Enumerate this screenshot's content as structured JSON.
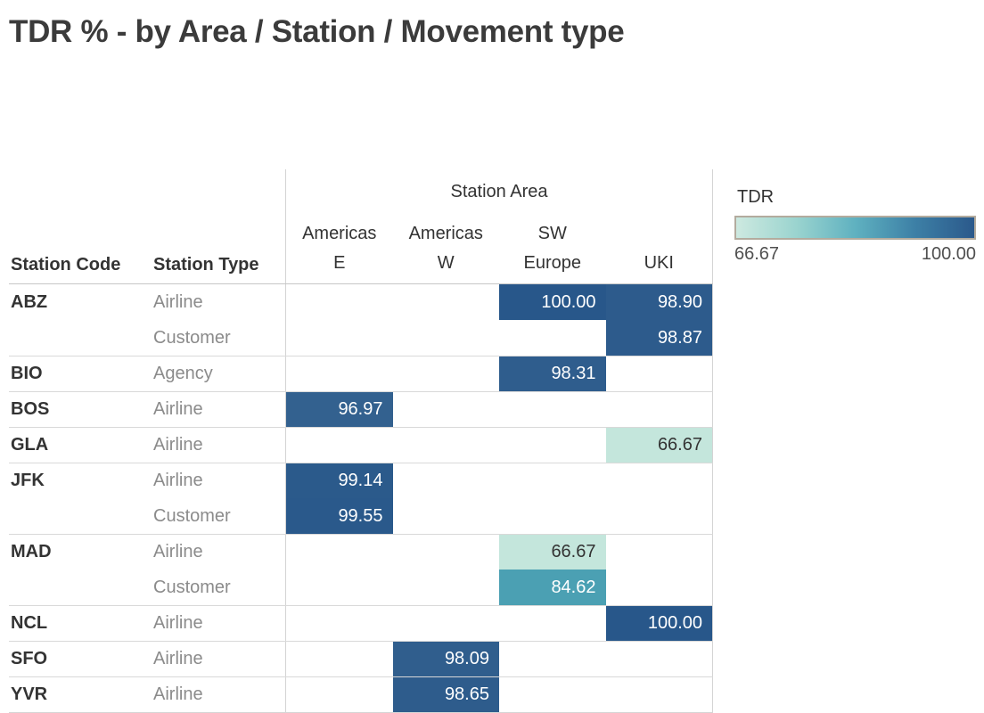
{
  "title": "TDR % - by Area / Station / Movement type",
  "field_labels": {
    "station_code": "Station Code",
    "station_type": "Station Type",
    "area_group": "Station Area"
  },
  "area_columns": [
    {
      "label": "Americas E"
    },
    {
      "label": "Americas W"
    },
    {
      "label": "SW Europe"
    },
    {
      "label": "UKI"
    }
  ],
  "rows": [
    {
      "code": "ABZ",
      "type": "Airline",
      "cells": [
        {},
        {},
        {
          "value": "100.00",
          "bg": "#28578A",
          "fg": "#ffffff"
        },
        {
          "value": "98.90",
          "bg": "#2D5B8C",
          "fg": "#ffffff"
        }
      ]
    },
    {
      "code": "",
      "type": "Customer",
      "cells": [
        {},
        {},
        {},
        {
          "value": "98.87",
          "bg": "#2D5B8C",
          "fg": "#ffffff"
        }
      ]
    },
    {
      "code": "BIO",
      "type": "Agency",
      "cells": [
        {},
        {},
        {
          "value": "98.31",
          "bg": "#2F5D8D",
          "fg": "#ffffff"
        },
        {}
      ]
    },
    {
      "code": "BOS",
      "type": "Airline",
      "cells": [
        {
          "value": "96.97",
          "bg": "#33618F",
          "fg": "#ffffff"
        },
        {},
        {},
        {}
      ]
    },
    {
      "code": "GLA",
      "type": "Airline",
      "cells": [
        {},
        {},
        {},
        {
          "value": "66.67",
          "bg": "#C4E6DC",
          "fg": "#333333"
        }
      ]
    },
    {
      "code": "JFK",
      "type": "Airline",
      "cells": [
        {
          "value": "99.14",
          "bg": "#2B5A8B",
          "fg": "#ffffff"
        },
        {},
        {},
        {}
      ]
    },
    {
      "code": "",
      "type": "Customer",
      "cells": [
        {
          "value": "99.55",
          "bg": "#2A598B",
          "fg": "#ffffff"
        },
        {},
        {},
        {}
      ]
    },
    {
      "code": "MAD",
      "type": "Airline",
      "cells": [
        {},
        {},
        {
          "value": "66.67",
          "bg": "#C4E6DC",
          "fg": "#333333"
        },
        {}
      ]
    },
    {
      "code": "",
      "type": "Customer",
      "cells": [
        {},
        {},
        {
          "value": "84.62",
          "bg": "#4BA0B3",
          "fg": "#ffffff"
        },
        {}
      ]
    },
    {
      "code": "NCL",
      "type": "Airline",
      "cells": [
        {},
        {},
        {},
        {
          "value": "100.00",
          "bg": "#28578A",
          "fg": "#ffffff"
        }
      ]
    },
    {
      "code": "SFO",
      "type": "Airline",
      "cells": [
        {},
        {
          "value": "98.09",
          "bg": "#305E8D",
          "fg": "#ffffff"
        },
        {},
        {}
      ]
    },
    {
      "code": "YVR",
      "type": "Airline",
      "cells": [
        {},
        {
          "value": "98.65",
          "bg": "#2E5C8C",
          "fg": "#ffffff"
        },
        {},
        {}
      ]
    }
  ],
  "legend": {
    "title": "TDR",
    "min_label": "66.67",
    "max_label": "100.00",
    "gradient": "linear-gradient(to right, #cde9e0 0%, #9bd4cf 25%, #5fb1c0 50%, #3d80a6 75%, #2b598b 100%)"
  },
  "chart_data": {
    "type": "heatmap",
    "title": "TDR % - by Area / Station / Movement type",
    "x_categories": [
      "Americas E",
      "Americas W",
      "SW Europe",
      "UKI"
    ],
    "row_groups": [
      {
        "station_code": "ABZ",
        "entries": [
          {
            "station_type": "Airline",
            "values": {
              "SW Europe": 100.0,
              "UKI": 98.9
            }
          },
          {
            "station_type": "Customer",
            "values": {
              "UKI": 98.87
            }
          }
        ]
      },
      {
        "station_code": "BIO",
        "entries": [
          {
            "station_type": "Agency",
            "values": {
              "SW Europe": 98.31
            }
          }
        ]
      },
      {
        "station_code": "BOS",
        "entries": [
          {
            "station_type": "Airline",
            "values": {
              "Americas E": 96.97
            }
          }
        ]
      },
      {
        "station_code": "GLA",
        "entries": [
          {
            "station_type": "Airline",
            "values": {
              "UKI": 66.67
            }
          }
        ]
      },
      {
        "station_code": "JFK",
        "entries": [
          {
            "station_type": "Airline",
            "values": {
              "Americas E": 99.14
            }
          },
          {
            "station_type": "Customer",
            "values": {
              "Americas E": 99.55
            }
          }
        ]
      },
      {
        "station_code": "MAD",
        "entries": [
          {
            "station_type": "Airline",
            "values": {
              "SW Europe": 66.67
            }
          },
          {
            "station_type": "Customer",
            "values": {
              "SW Europe": 84.62
            }
          }
        ]
      },
      {
        "station_code": "NCL",
        "entries": [
          {
            "station_type": "Airline",
            "values": {
              "UKI": 100.0
            }
          }
        ]
      },
      {
        "station_code": "SFO",
        "entries": [
          {
            "station_type": "Airline",
            "values": {
              "Americas W": 98.09
            }
          }
        ]
      },
      {
        "station_code": "YVR",
        "entries": [
          {
            "station_type": "Airline",
            "values": {
              "Americas W": 98.65
            }
          }
        ]
      }
    ],
    "color_scale": {
      "label": "TDR",
      "min": 66.67,
      "max": 100.0,
      "min_color": "#cde9e0",
      "max_color": "#2b598b"
    },
    "legend_position": "right"
  }
}
